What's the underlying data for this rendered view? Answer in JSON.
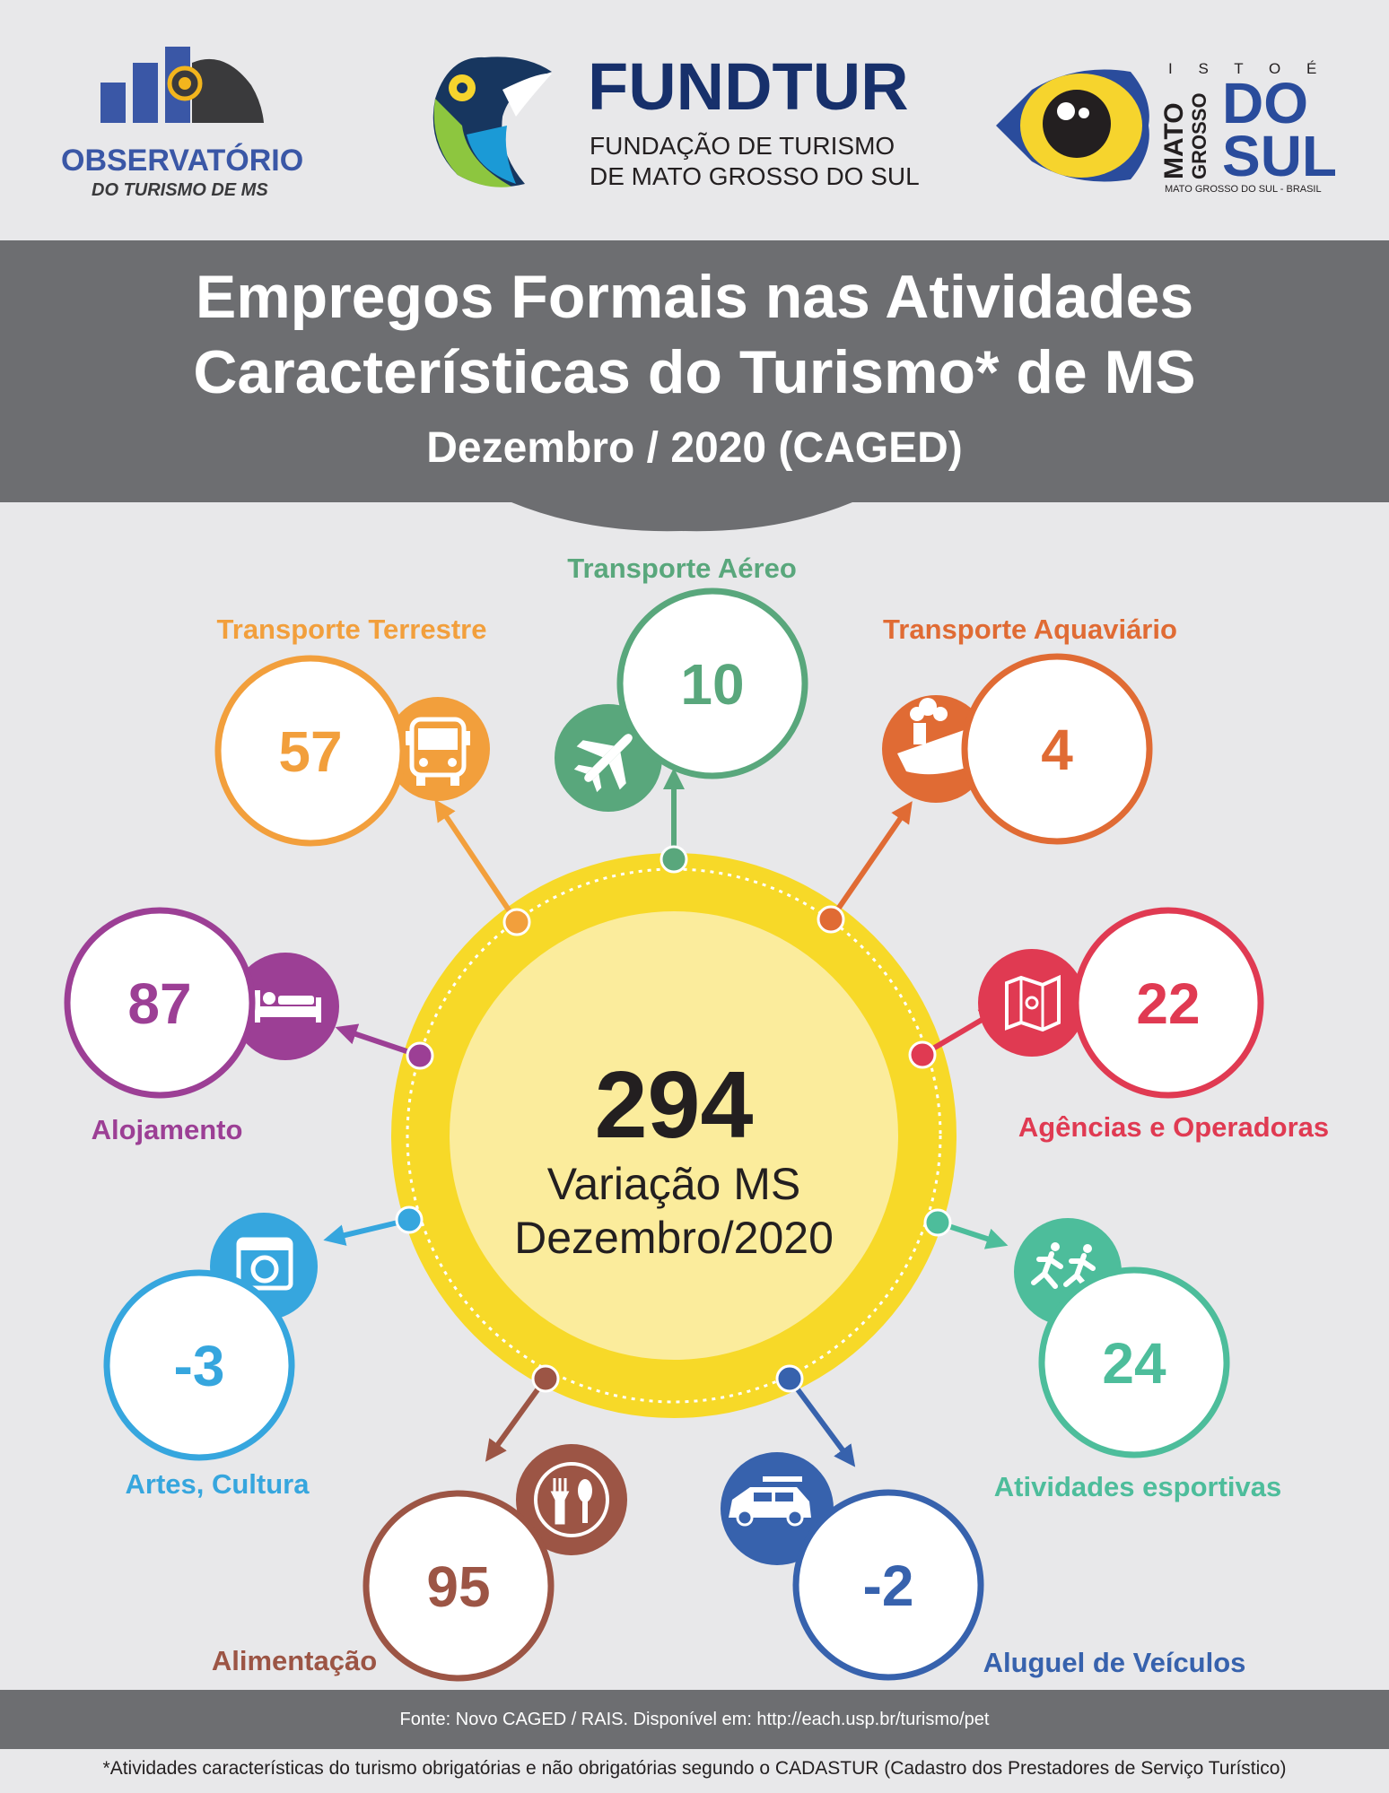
{
  "logos": {
    "observatorio": {
      "line1": "OBSERVATÓRIO",
      "line2": "DO TURISMO DE MS"
    },
    "fundtur": {
      "name": "FUNDTUR",
      "line1": "FUNDAÇÃO DE TURISMO",
      "line2": "DE MATO GROSSO DO SUL"
    },
    "ms": {
      "tag": "I S T O  É",
      "mato": "MATO",
      "grosso": "GROSSO",
      "do": "DO",
      "sul": "SUL",
      "caption": "MATO GROSSO DO SUL - BRASIL"
    }
  },
  "header": {
    "title_line1": "Empregos Formais nas Atividades",
    "title_line2": "Características do Turismo* de MS",
    "subtitle": "Dezembro / 2020 (CAGED)"
  },
  "center": {
    "value": "294",
    "label_line1": "Variação MS",
    "label_line2": "Dezembro/2020"
  },
  "categories": [
    {
      "key": "transporte-aereo",
      "label": "Transporte Aéreo",
      "value": "10",
      "color": "#59a77c",
      "icon": "airplane-icon"
    },
    {
      "key": "transporte-terrestre",
      "label": "Transporte Terrestre",
      "value": "57",
      "color": "#f29f3c",
      "icon": "bus-icon"
    },
    {
      "key": "transporte-aquaviario",
      "label": "Transporte Aquaviário",
      "value": "4",
      "color": "#e06b34",
      "icon": "ship-icon"
    },
    {
      "key": "alojamento",
      "label": "Alojamento",
      "value": "87",
      "color": "#9c3f95",
      "icon": "bed-icon"
    },
    {
      "key": "agencias",
      "label": "Agências e Operadoras",
      "value": "22",
      "color": "#e03a52",
      "icon": "map-icon"
    },
    {
      "key": "artes",
      "label": "Artes, Cultura",
      "value": "-3",
      "color": "#36a6de",
      "icon": "camera-icon"
    },
    {
      "key": "esportivas",
      "label": "Atividades esportivas",
      "value": "24",
      "color": "#4dbd9b",
      "icon": "runners-icon"
    },
    {
      "key": "alimentacao",
      "label": "Alimentação",
      "value": "95",
      "color": "#9c5545",
      "icon": "cutlery-icon"
    },
    {
      "key": "aluguel",
      "label": "Aluguel de Veículos",
      "value": "-2",
      "color": "#3762ad",
      "icon": "car-icon"
    }
  ],
  "footer": {
    "source": "Fonte: Novo CAGED / RAIS. Disponível em: http://each.usp.br/turismo/pet",
    "note": "*Atividades características do turismo obrigatórias e não obrigatórias segundo o CADASTUR (Cadastro dos Prestadores de Serviço Turístico)"
  },
  "colors": {
    "center_ring": "#f7d928",
    "center_fill": "#fbec9c",
    "banner": "#6d6e71",
    "background": "#e8e8ea"
  }
}
